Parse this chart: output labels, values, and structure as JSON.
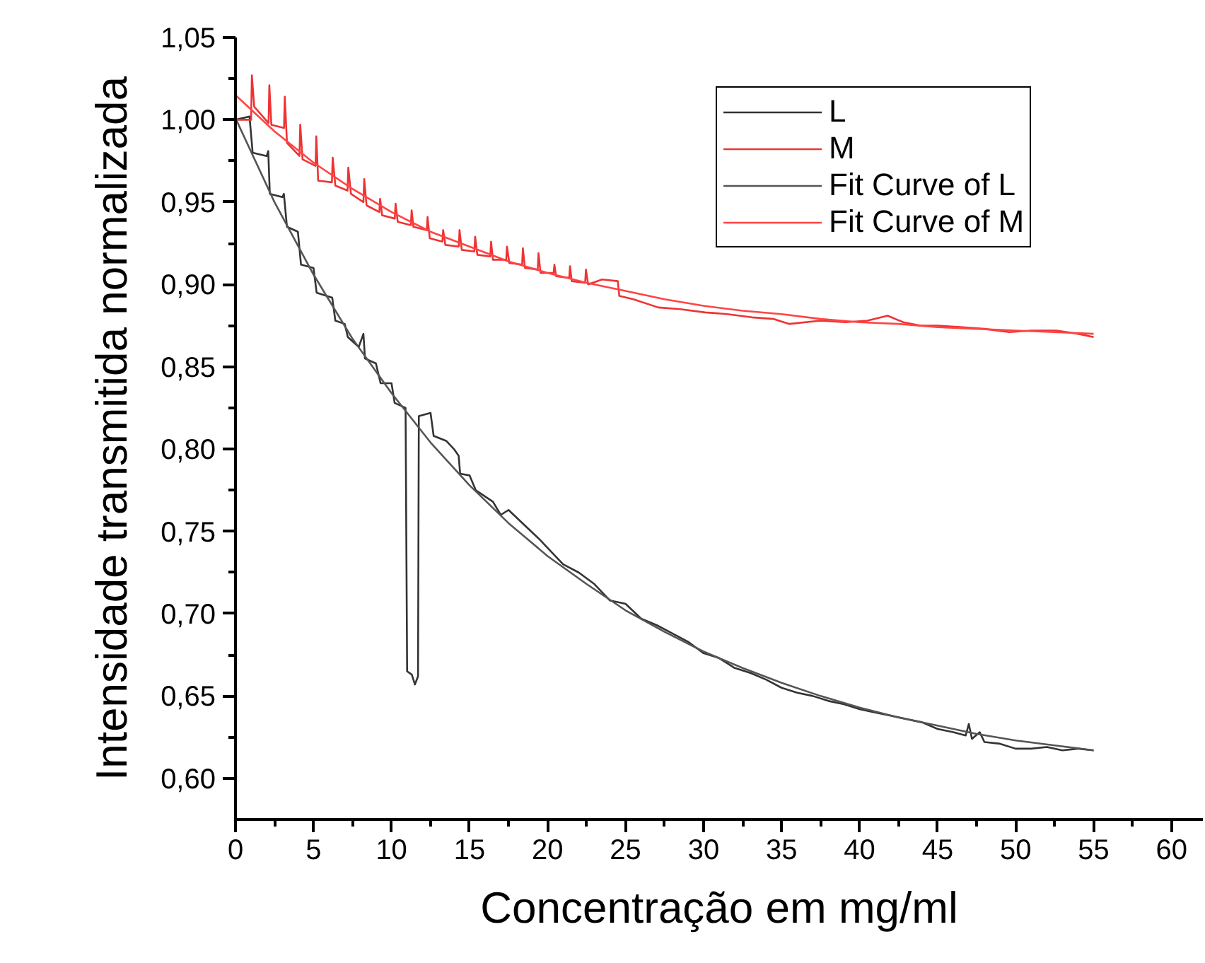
{
  "chart_data": {
    "type": "line",
    "xlabel": "Concentração em mg/ml",
    "ylabel": "Intensidade transmitida normalizada",
    "xlim": [
      0,
      62
    ],
    "ylim": [
      0.575,
      1.05
    ],
    "xticks": [
      0,
      5,
      10,
      15,
      20,
      25,
      30,
      35,
      40,
      45,
      50,
      55,
      60
    ],
    "yticks": [
      {
        "value": 0.6,
        "label": "0,60"
      },
      {
        "value": 0.65,
        "label": "0,65"
      },
      {
        "value": 0.7,
        "label": "0,70"
      },
      {
        "value": 0.75,
        "label": "0,75"
      },
      {
        "value": 0.8,
        "label": "0,80"
      },
      {
        "value": 0.85,
        "label": "0,85"
      },
      {
        "value": 0.9,
        "label": "0,90"
      },
      {
        "value": 0.95,
        "label": "0,95"
      },
      {
        "value": 1.0,
        "label": "1,00"
      },
      {
        "value": 1.05,
        "label": "1,05"
      }
    ],
    "grid": false,
    "legend": "top right",
    "marker": "none",
    "line_style": "solid",
    "series": [
      {
        "name": "L",
        "color": "#333333",
        "x": [
          0,
          0.9,
          1.1,
          2.0,
          2.1,
          2.2,
          3.0,
          3.1,
          3.3,
          4.0,
          4.2,
          5.0,
          5.2,
          6.2,
          6.4,
          7.0,
          7.2,
          7.9,
          8.2,
          8.3,
          9.0,
          9.3,
          10.0,
          10.2,
          10.9,
          11.0,
          11.3,
          11.5,
          11.7,
          11.75,
          12.5,
          12.7,
          13.5,
          14.0,
          14.3,
          14.4,
          15.0,
          15.4,
          16.5,
          17.0,
          17.5,
          18.5,
          19.5,
          20,
          21,
          22,
          23,
          24,
          25,
          26,
          27,
          28,
          29,
          30,
          31,
          32,
          33,
          34,
          35,
          36,
          37,
          38,
          39,
          40,
          41,
          42,
          43,
          44,
          45,
          46,
          46.8,
          47,
          47.2,
          47.7,
          48,
          49,
          50,
          51,
          52,
          53,
          54,
          55
        ],
        "values": [
          1.0,
          1.002,
          0.98,
          0.978,
          0.981,
          0.955,
          0.953,
          0.955,
          0.935,
          0.932,
          0.912,
          0.91,
          0.895,
          0.892,
          0.878,
          0.876,
          0.868,
          0.862,
          0.87,
          0.855,
          0.852,
          0.84,
          0.84,
          0.828,
          0.825,
          0.665,
          0.663,
          0.657,
          0.662,
          0.82,
          0.822,
          0.808,
          0.805,
          0.8,
          0.796,
          0.785,
          0.784,
          0.775,
          0.768,
          0.76,
          0.763,
          0.754,
          0.745,
          0.74,
          0.73,
          0.725,
          0.718,
          0.708,
          0.706,
          0.697,
          0.693,
          0.688,
          0.683,
          0.676,
          0.673,
          0.667,
          0.664,
          0.66,
          0.655,
          0.652,
          0.65,
          0.647,
          0.645,
          0.642,
          0.64,
          0.638,
          0.636,
          0.634,
          0.63,
          0.628,
          0.626,
          0.633,
          0.624,
          0.628,
          0.622,
          0.621,
          0.618,
          0.618,
          0.619,
          0.617,
          0.618,
          0.617
        ]
      },
      {
        "name": "M",
        "color": "#ee3333",
        "x": [
          0,
          0.9,
          1.0,
          1.05,
          1.2,
          2.12,
          2.17,
          2.3,
          3.11,
          3.16,
          3.3,
          4.1,
          4.15,
          4.3,
          5.13,
          5.18,
          5.3,
          6.18,
          6.23,
          6.4,
          7.18,
          7.23,
          7.4,
          8.2,
          8.25,
          8.4,
          9.22,
          9.27,
          9.4,
          10.21,
          10.26,
          10.4,
          11.24,
          11.29,
          11.4,
          12.26,
          12.31,
          12.45,
          13.26,
          13.31,
          13.45,
          14.31,
          14.36,
          14.5,
          15.31,
          15.36,
          15.5,
          16.33,
          16.38,
          16.5,
          17.35,
          17.4,
          17.55,
          18.37,
          18.42,
          18.55,
          19.37,
          19.42,
          19.55,
          20.39,
          20.44,
          20.55,
          21.39,
          21.44,
          21.55,
          22.41,
          22.46,
          22.6,
          23.5,
          24.5,
          24.6,
          25.5,
          27.1,
          28.5,
          30.1,
          31.5,
          33.1,
          34.5,
          35.5,
          37.5,
          39.1,
          40.5,
          41.8,
          42.8,
          43.9,
          45.0,
          46.6,
          48.0,
          49.6,
          51.0,
          52.6,
          54.0,
          55
        ],
        "values": [
          1.0,
          1.0,
          1.0,
          1.027,
          1.008,
          0.998,
          1.021,
          0.997,
          0.995,
          1.014,
          0.986,
          0.978,
          0.997,
          0.976,
          0.972,
          0.99,
          0.963,
          0.962,
          0.977,
          0.96,
          0.957,
          0.971,
          0.955,
          0.95,
          0.964,
          0.948,
          0.944,
          0.952,
          0.942,
          0.94,
          0.949,
          0.938,
          0.936,
          0.945,
          0.935,
          0.933,
          0.941,
          0.928,
          0.926,
          0.933,
          0.924,
          0.923,
          0.933,
          0.921,
          0.92,
          0.929,
          0.918,
          0.917,
          0.926,
          0.915,
          0.915,
          0.923,
          0.913,
          0.912,
          0.922,
          0.91,
          0.909,
          0.919,
          0.907,
          0.907,
          0.912,
          0.905,
          0.904,
          0.911,
          0.902,
          0.901,
          0.909,
          0.9,
          0.903,
          0.902,
          0.893,
          0.891,
          0.886,
          0.885,
          0.883,
          0.882,
          0.88,
          0.879,
          0.876,
          0.878,
          0.877,
          0.878,
          0.881,
          0.877,
          0.875,
          0.875,
          0.874,
          0.873,
          0.871,
          0.872,
          0.872,
          0.87,
          0.868
        ]
      },
      {
        "name": "Fit Curve of L",
        "color": "#555555",
        "x": [
          0,
          2.5,
          5,
          7.5,
          10,
          12.5,
          15,
          17.5,
          20,
          22.5,
          25,
          27.5,
          30,
          32.5,
          35,
          37.5,
          40,
          42.5,
          45,
          47.5,
          50,
          52.5,
          55
        ],
        "values": [
          1.001,
          0.95,
          0.906,
          0.867,
          0.834,
          0.804,
          0.778,
          0.755,
          0.735,
          0.718,
          0.702,
          0.689,
          0.677,
          0.667,
          0.658,
          0.65,
          0.643,
          0.637,
          0.632,
          0.627,
          0.623,
          0.62,
          0.617
        ]
      },
      {
        "name": "Fit Curve of M",
        "color": "#ff4444",
        "x": [
          0,
          2.5,
          5,
          7.5,
          10,
          12.5,
          15,
          17.5,
          20,
          22.5,
          25,
          27.5,
          30,
          32.5,
          35,
          37.5,
          40,
          42.5,
          45,
          47.5,
          50,
          52.5,
          55
        ],
        "values": [
          1.015,
          0.993,
          0.974,
          0.958,
          0.944,
          0.932,
          0.923,
          0.914,
          0.907,
          0.901,
          0.896,
          0.891,
          0.887,
          0.884,
          0.882,
          0.879,
          0.877,
          0.876,
          0.874,
          0.873,
          0.872,
          0.871,
          0.87
        ]
      }
    ]
  }
}
